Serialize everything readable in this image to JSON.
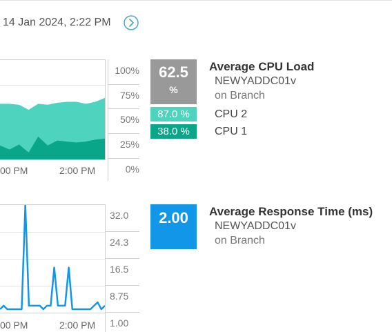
{
  "header": {
    "date": "14 Jan 2024, 2:22 PM"
  },
  "cpu_panel": {
    "title": "Average CPU Load",
    "node": "NEWYADDC01v",
    "location": "on Branch",
    "average_value": "62.5",
    "average_unit": "%",
    "series": [
      {
        "name": "CPU 2",
        "value": "87.0 %",
        "color": "#4ed3be"
      },
      {
        "name": "CPU 1",
        "value": "38.0 %",
        "color": "#0aa68a"
      }
    ],
    "y_ticks": [
      "100%",
      "75%",
      "50%",
      "25%",
      "0%"
    ],
    "x_ticks": [
      "00 PM",
      "2:00 PM"
    ]
  },
  "rt_panel": {
    "title": "Average Response Time (ms)",
    "node": "NEWYADDC01v",
    "location": "on Branch",
    "average_value": "2.00",
    "color": "#1296e8",
    "y_ticks": [
      "32.0",
      "24.3",
      "16.5",
      "8.75",
      "1.00"
    ],
    "x_ticks": [
      "00 PM",
      "2:00 PM"
    ]
  },
  "chart_data": [
    {
      "type": "area",
      "title": "Average CPU Load",
      "ylim": [
        0,
        100
      ],
      "y_unit": "%",
      "x_tick_labels": [
        "00 PM",
        "2:00 PM"
      ],
      "series": [
        {
          "name": "CPU 2",
          "values": [
            56,
            56,
            55,
            50,
            56,
            55,
            57,
            58,
            58,
            56,
            58,
            62
          ]
        },
        {
          "name": "CPU 1",
          "values": [
            14,
            10,
            15,
            7,
            23,
            14,
            19,
            18,
            17,
            18,
            20,
            21
          ]
        }
      ]
    },
    {
      "type": "line",
      "title": "Average Response Time (ms)",
      "ylim": [
        1.0,
        32.0
      ],
      "x_tick_labels": [
        "00 PM",
        "2:00 PM"
      ],
      "series": [
        {
          "name": "",
          "values": [
            2,
            3,
            2,
            2,
            2,
            2,
            2,
            33,
            3,
            3,
            3,
            3,
            2,
            3,
            3,
            14,
            3,
            3,
            3,
            14,
            2,
            2,
            2,
            2,
            2,
            2,
            3,
            4,
            2,
            3
          ]
        }
      ]
    }
  ]
}
